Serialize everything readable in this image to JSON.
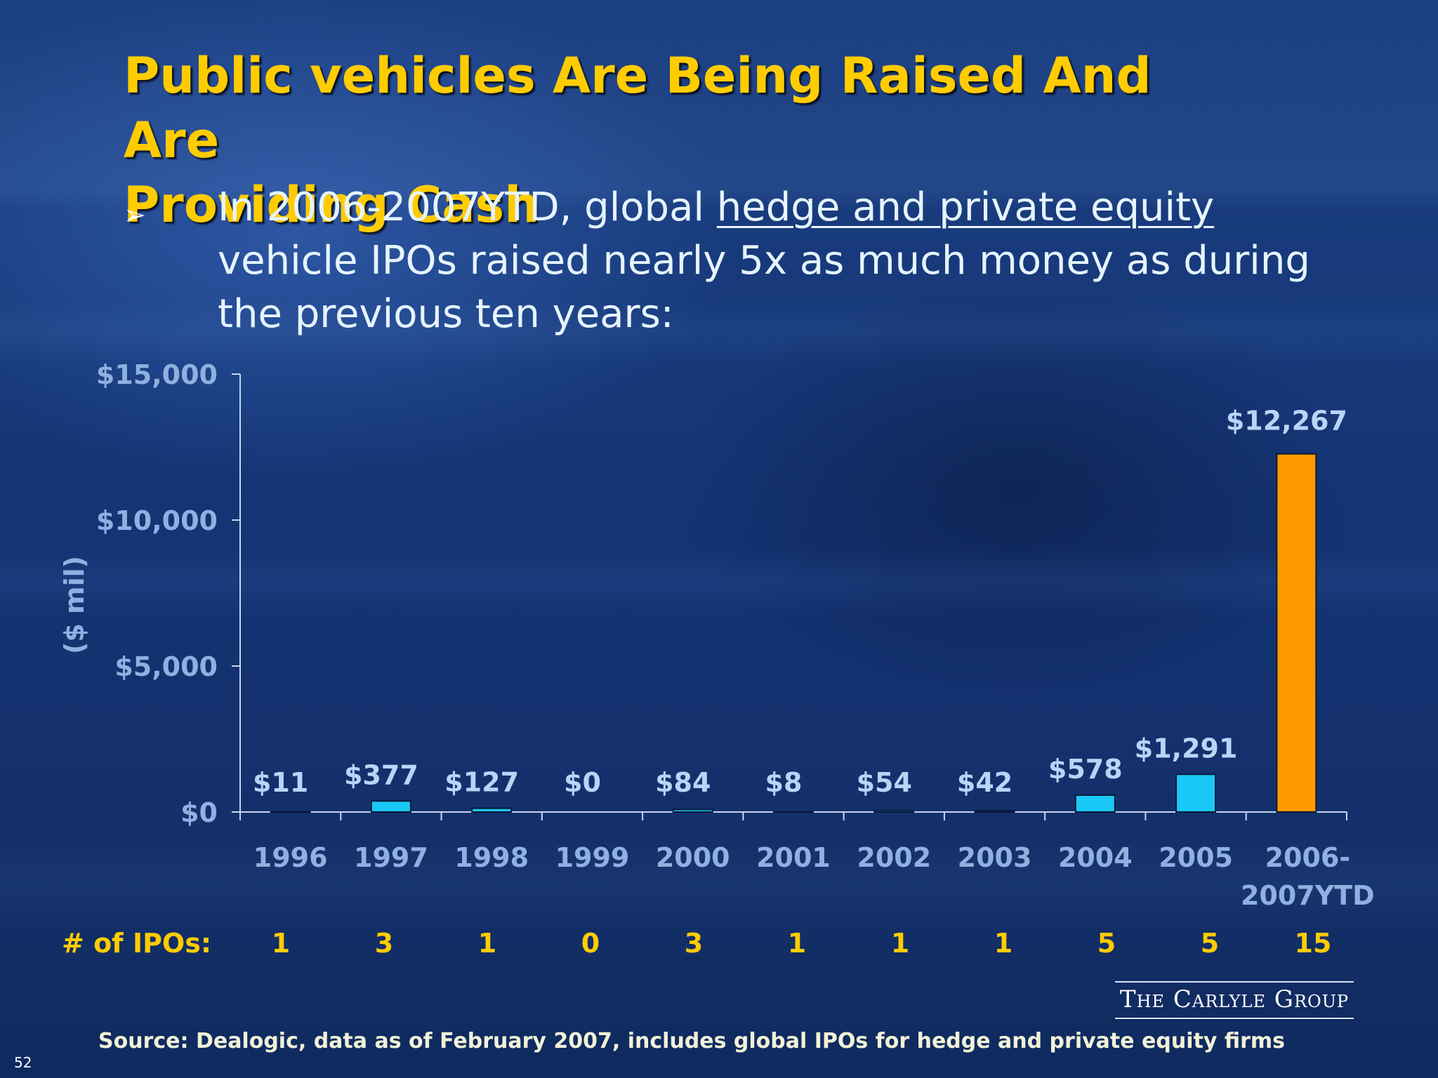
{
  "slide": {
    "title_line1": "Public vehicles Are Being Raised And Are",
    "title_line2": "Providing Cash",
    "bullet_symbol": "➢",
    "bullet_prefix": "In 2006-2007YTD, global ",
    "bullet_link": "hedge and private equity",
    "bullet_line2": "vehicle IPOs raised nearly 5x as much money as during",
    "bullet_line3": "the previous ten years:",
    "ipo_row_label": "# of IPOs:",
    "ipo_counts": [
      "1",
      "3",
      "1",
      "0",
      "3",
      "1",
      "1",
      "1",
      "5",
      "5",
      "15"
    ],
    "logo_text": "The Carlyle Group",
    "source": "Source: Dealogic, data as of February 2007, includes global IPOs for hedge and private equity firms",
    "page_number": "52"
  },
  "chart_data": {
    "type": "bar",
    "title": "",
    "xlabel": "",
    "ylabel": "($ mil)",
    "ylim": [
      0,
      15000
    ],
    "y_ticks": [
      0,
      5000,
      10000,
      15000
    ],
    "y_tick_labels": [
      "$0",
      "$5,000",
      "$10,000",
      "$15,000"
    ],
    "categories": [
      "1996",
      "1997",
      "1998",
      "1999",
      "2000",
      "2001",
      "2002",
      "2003",
      "2004",
      "2005",
      "2006-2007YTD"
    ],
    "category_label_lines": [
      [
        "1996"
      ],
      [
        "1997"
      ],
      [
        "1998"
      ],
      [
        "1999"
      ],
      [
        "2000"
      ],
      [
        "2001"
      ],
      [
        "2002"
      ],
      [
        "2003"
      ],
      [
        "2004"
      ],
      [
        "2005"
      ],
      [
        "2006-",
        "2007YTD"
      ]
    ],
    "values": [
      11,
      377,
      127,
      0,
      84,
      8,
      54,
      42,
      578,
      1291,
      12267
    ],
    "value_labels": [
      "$11",
      "$377",
      "$127",
      "$0",
      "$84",
      "$8",
      "$54",
      "$42",
      "$578",
      "$1,291",
      "$12,267"
    ],
    "bar_colors": [
      "#19c8f5",
      "#19c8f5",
      "#19c8f5",
      "#19c8f5",
      "#19c8f5",
      "#19c8f5",
      "#19c8f5",
      "#19c8f5",
      "#19c8f5",
      "#19c8f5",
      "#ff9900"
    ],
    "grid": false,
    "legend": "none"
  },
  "colors": {
    "title": "#ffcc00",
    "axis_text": "#8fb0e0",
    "value_label": "#b9d4f7",
    "axis_line": "#c8d6ec"
  }
}
